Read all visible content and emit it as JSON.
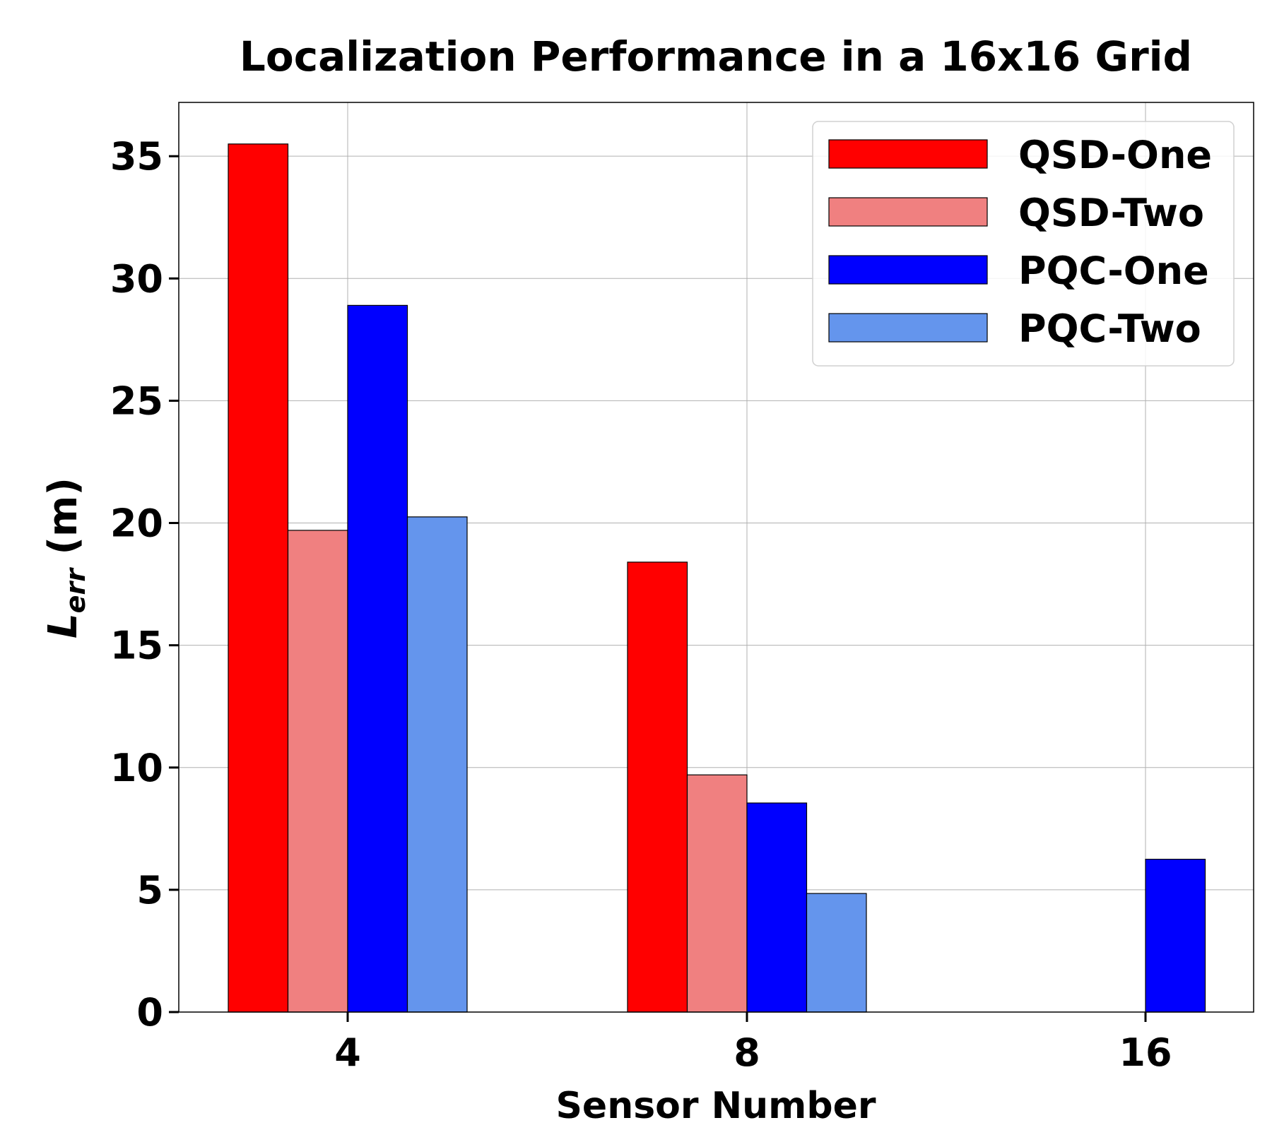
{
  "chart_data": {
    "type": "bar",
    "title": "Localization Performance in a 16x16 Grid",
    "xlabel": "Sensor Number",
    "ylabel": {
      "main": "L",
      "sub": "err",
      "unit": " (m)"
    },
    "categories": [
      "4",
      "8",
      "16"
    ],
    "ylim": [
      0,
      37.2
    ],
    "yticks": [
      0,
      5,
      10,
      15,
      20,
      25,
      30,
      35
    ],
    "grid": true,
    "legend_position": "top-right",
    "series": [
      {
        "name": "QSD-One",
        "color": "#ff0000",
        "values": [
          35.5,
          18.4,
          null
        ]
      },
      {
        "name": "QSD-Two",
        "color": "#f08080",
        "values": [
          19.7,
          9.7,
          null
        ]
      },
      {
        "name": "PQC-One",
        "color": "#0000ff",
        "values": [
          28.9,
          8.55,
          6.25
        ]
      },
      {
        "name": "PQC-Two",
        "color": "#6495ed",
        "values": [
          20.25,
          4.85,
          null
        ]
      }
    ]
  }
}
